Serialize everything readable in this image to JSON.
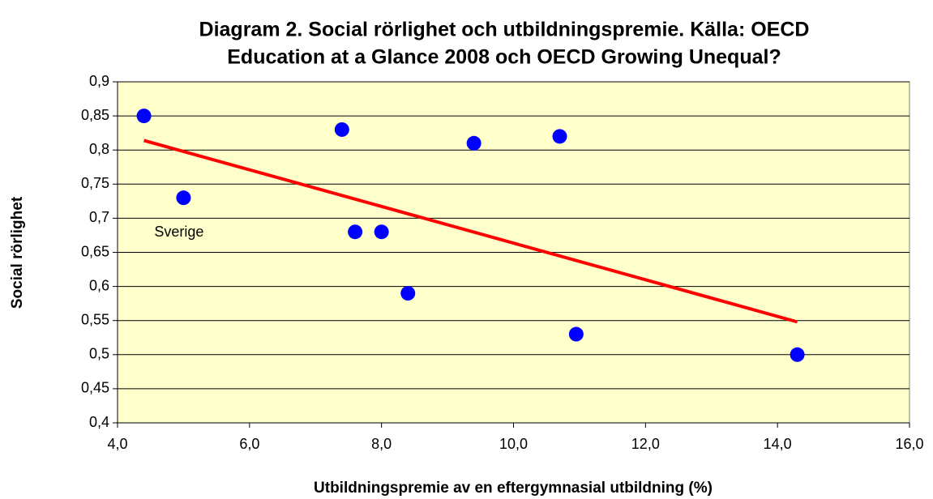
{
  "chart_data": {
    "type": "scatter",
    "title": [
      "Diagram 2. Social rörlighet och utbildningspremie. Källa: OECD",
      "Education at a Glance 2008 och OECD Growing Unequal?"
    ],
    "x_label": "Utbildningspremie av en eftergymnasial utbildning (%)",
    "y_label": "Social rörlighet",
    "x": [
      4.4,
      5.0,
      7.4,
      7.6,
      8.0,
      8.4,
      9.4,
      10.7,
      10.95,
      14.3
    ],
    "values": [
      0.85,
      0.73,
      0.83,
      0.68,
      0.68,
      0.59,
      0.81,
      0.82,
      0.53,
      0.5
    ],
    "color": "#0000ff",
    "trendline": {
      "x": [
        4.4,
        14.3
      ],
      "values": [
        0.814,
        0.548
      ],
      "color": "#ff0000"
    },
    "annotations": [
      {
        "text": "Sverige"
      }
    ],
    "xlim": [
      4,
      16
    ],
    "ylim": [
      0.4,
      0.9
    ],
    "xticks": [
      {
        "value": 4,
        "label": "4,0"
      },
      {
        "value": 6,
        "label": "6,0"
      },
      {
        "value": 8,
        "label": "8,0"
      },
      {
        "value": 10,
        "label": "10,0"
      },
      {
        "value": 12,
        "label": "12,0"
      },
      {
        "value": 14,
        "label": "14,0"
      },
      {
        "value": 16,
        "label": "16,0"
      }
    ],
    "yticks": [
      {
        "value": 0.4,
        "label": "0,4"
      },
      {
        "value": 0.45,
        "label": "0,45"
      },
      {
        "value": 0.5,
        "label": "0,5"
      },
      {
        "value": 0.55,
        "label": "0,55"
      },
      {
        "value": 0.6,
        "label": "0,6"
      },
      {
        "value": 0.65,
        "label": "0,65"
      },
      {
        "value": 0.7,
        "label": "0,7"
      },
      {
        "value": 0.75,
        "label": "0,75"
      },
      {
        "value": 0.8,
        "label": "0,8"
      },
      {
        "value": 0.85,
        "label": "0,85"
      },
      {
        "value": 0.9,
        "label": "0,9"
      }
    ],
    "grid": true,
    "background": "#ffffcc"
  }
}
